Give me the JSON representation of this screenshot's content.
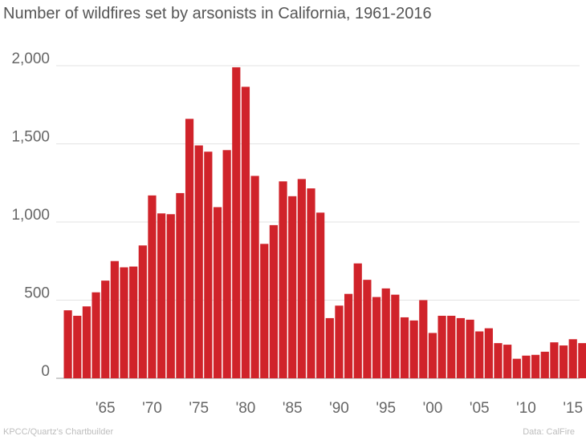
{
  "chart_data": {
    "type": "bar",
    "title": "Number of wildfires set by arsonists in California, 1961-2016",
    "xlabel": "",
    "ylabel": "",
    "ylim": [
      0,
      2000
    ],
    "yticks": [
      0,
      500,
      1000,
      1500,
      2000
    ],
    "ytick_labels": [
      "0",
      "500",
      "1,000",
      "1,500",
      "2,000"
    ],
    "xtick_years": [
      1965,
      1970,
      1975,
      1980,
      1985,
      1990,
      1995,
      2000,
      2005,
      2010,
      2015
    ],
    "xtick_labels": [
      "'65",
      "'70",
      "'75",
      "'80",
      "'85",
      "'90",
      "'95",
      "'00",
      "'05",
      "'10",
      "'15"
    ],
    "grid": true,
    "bar_color": "#d0232a",
    "categories": [
      1961,
      1962,
      1963,
      1964,
      1965,
      1966,
      1967,
      1968,
      1969,
      1970,
      1971,
      1972,
      1973,
      1974,
      1975,
      1976,
      1977,
      1978,
      1979,
      1980,
      1981,
      1982,
      1983,
      1984,
      1985,
      1986,
      1987,
      1988,
      1989,
      1990,
      1991,
      1992,
      1993,
      1994,
      1995,
      1996,
      1997,
      1998,
      1999,
      2000,
      2001,
      2002,
      2003,
      2004,
      2005,
      2006,
      2007,
      2008,
      2009,
      2010,
      2011,
      2012,
      2013,
      2014,
      2015,
      2016
    ],
    "values": [
      435,
      400,
      460,
      550,
      625,
      750,
      710,
      715,
      850,
      1170,
      1055,
      1050,
      1185,
      1660,
      1490,
      1450,
      1095,
      1460,
      1990,
      1865,
      1295,
      860,
      980,
      1260,
      1165,
      1275,
      1215,
      1060,
      385,
      465,
      540,
      735,
      630,
      520,
      575,
      535,
      390,
      370,
      500,
      290,
      400,
      400,
      385,
      375,
      300,
      320,
      225,
      215,
      125,
      145,
      150,
      170,
      230,
      210,
      250,
      225
    ]
  },
  "source_left": "KPCC/Quartz's Chartbuilder",
  "source_right": "Data: CalFire"
}
